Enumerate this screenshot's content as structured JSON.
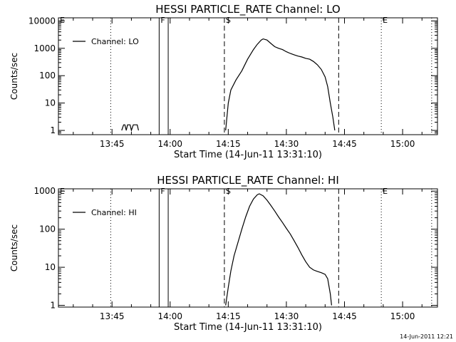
{
  "timestamp": "14-Jun-2011 12:21",
  "chart_data": [
    {
      "type": "line",
      "title": "HESSI PARTICLE_RATE Channel: LO",
      "xlabel": "Start Time (14-Jun-11 13:31:10)",
      "ylabel": "Counts/sec",
      "yscale": "log",
      "xlim": [
        "13:31:10",
        "15:09:00"
      ],
      "ylim": [
        0.7,
        13000
      ],
      "x_ticks": [
        "13:45",
        "14:00",
        "14:15",
        "14:30",
        "14:45",
        "15:00"
      ],
      "y_ticks": [
        {
          "value": 1,
          "label": "1"
        },
        {
          "value": 10,
          "label": "10"
        },
        {
          "value": 100,
          "label": "100"
        },
        {
          "value": 1000,
          "label": "1000"
        },
        {
          "value": 10000,
          "label": "10000"
        }
      ],
      "legend": {
        "position": "top-left",
        "label": "Channel: LO"
      },
      "markers": [
        {
          "label": "E",
          "time": "13:31:10",
          "style": "dotted"
        },
        {
          "label": "",
          "time": "13:44:40",
          "style": "dotted"
        },
        {
          "label": "F",
          "time": "13:57:10",
          "style": "solid"
        },
        {
          "label": "",
          "time": "13:59:30",
          "style": "solid"
        },
        {
          "label": "S",
          "time": "14:14:00",
          "style": "dashed"
        },
        {
          "label": "",
          "time": "14:43:30",
          "style": "dashed"
        },
        {
          "label": "E",
          "time": "14:54:30",
          "style": "dotted"
        },
        {
          "label": "",
          "time": "15:07:30",
          "style": "dotted"
        }
      ],
      "series": [
        {
          "segments": [
            [
              [
                "13:47:30",
                1
              ],
              [
                "13:48:00",
                1.6
              ],
              [
                "13:48:20",
                1.6
              ],
              [
                "13:48:40",
                1
              ],
              [
                "13:49:00",
                1.6
              ],
              [
                "13:49:40",
                1.6
              ],
              [
                "13:50:00",
                1
              ],
              [
                "13:50:30",
                1.6
              ],
              [
                "13:51:30",
                1.6
              ],
              [
                "13:51:50",
                1
              ]
            ],
            [
              [
                "14:14:20",
                1
              ],
              [
                "14:15:00",
                10
              ],
              [
                "14:15:40",
                30
              ],
              [
                "14:17:00",
                70
              ],
              [
                "14:18:30",
                150
              ],
              [
                "14:20:00",
                400
              ],
              [
                "14:21:30",
                900
              ],
              [
                "14:22:30",
                1400
              ],
              [
                "14:23:30",
                2000
              ],
              [
                "14:24:00",
                2200
              ],
              [
                "14:25:00",
                2000
              ],
              [
                "14:26:00",
                1500
              ],
              [
                "14:27:00",
                1150
              ],
              [
                "14:28:00",
                1000
              ],
              [
                "14:29:00",
                900
              ],
              [
                "14:30:00",
                750
              ],
              [
                "14:31:00",
                650
              ],
              [
                "14:32:00",
                580
              ],
              [
                "14:33:00",
                520
              ],
              [
                "14:34:00",
                480
              ],
              [
                "14:35:00",
                430
              ],
              [
                "14:36:00",
                400
              ],
              [
                "14:37:00",
                330
              ],
              [
                "14:38:00",
                250
              ],
              [
                "14:39:00",
                170
              ],
              [
                "14:40:00",
                90
              ],
              [
                "14:40:40",
                40
              ],
              [
                "14:41:20",
                10
              ],
              [
                "14:42:00",
                3
              ],
              [
                "14:42:30",
                1
              ]
            ]
          ]
        }
      ]
    },
    {
      "type": "line",
      "title": "HESSI PARTICLE_RATE Channel: HI",
      "xlabel": "Start Time (14-Jun-11 13:31:10)",
      "ylabel": "Counts/sec",
      "yscale": "log",
      "xlim": [
        "13:31:10",
        "15:09:00"
      ],
      "ylim": [
        0.9,
        1150
      ],
      "x_ticks": [
        "13:45",
        "14:00",
        "14:15",
        "14:30",
        "14:45",
        "15:00"
      ],
      "y_ticks": [
        {
          "value": 1,
          "label": "1"
        },
        {
          "value": 10,
          "label": "10"
        },
        {
          "value": 100,
          "label": "100"
        },
        {
          "value": 1000,
          "label": "1000"
        }
      ],
      "legend": {
        "position": "top-left",
        "label": "Channel: HI"
      },
      "markers": [
        {
          "label": "E",
          "time": "13:31:10",
          "style": "dotted"
        },
        {
          "label": "",
          "time": "13:44:40",
          "style": "dotted"
        },
        {
          "label": "F",
          "time": "13:57:10",
          "style": "solid"
        },
        {
          "label": "",
          "time": "13:59:30",
          "style": "solid"
        },
        {
          "label": "S",
          "time": "14:14:00",
          "style": "dashed"
        },
        {
          "label": "",
          "time": "14:43:30",
          "style": "dashed"
        },
        {
          "label": "E",
          "time": "14:54:30",
          "style": "dotted"
        },
        {
          "label": "",
          "time": "15:07:30",
          "style": "dotted"
        }
      ],
      "series": [
        {
          "segments": [
            [
              [
                "14:14:20",
                1
              ],
              [
                "14:15:00",
                3
              ],
              [
                "14:15:40",
                8
              ],
              [
                "14:16:30",
                20
              ],
              [
                "14:17:30",
                45
              ],
              [
                "14:18:30",
                100
              ],
              [
                "14:19:30",
                210
              ],
              [
                "14:20:30",
                400
              ],
              [
                "14:21:30",
                620
              ],
              [
                "14:22:30",
                800
              ],
              [
                "14:23:00",
                850
              ],
              [
                "14:24:00",
                750
              ],
              [
                "14:25:00",
                580
              ],
              [
                "14:26:00",
                420
              ],
              [
                "14:27:00",
                300
              ],
              [
                "14:28:00",
                210
              ],
              [
                "14:29:00",
                150
              ],
              [
                "14:30:00",
                105
              ],
              [
                "14:31:00",
                75
              ],
              [
                "14:32:00",
                50
              ],
              [
                "14:33:00",
                33
              ],
              [
                "14:34:00",
                21
              ],
              [
                "14:35:00",
                14
              ],
              [
                "14:36:00",
                10
              ],
              [
                "14:37:00",
                8.5
              ],
              [
                "14:38:00",
                7.8
              ],
              [
                "14:39:00",
                7.2
              ],
              [
                "14:40:00",
                6.5
              ],
              [
                "14:40:40",
                5
              ],
              [
                "14:41:20",
                2
              ],
              [
                "14:41:40",
                1
              ]
            ]
          ]
        }
      ]
    }
  ]
}
